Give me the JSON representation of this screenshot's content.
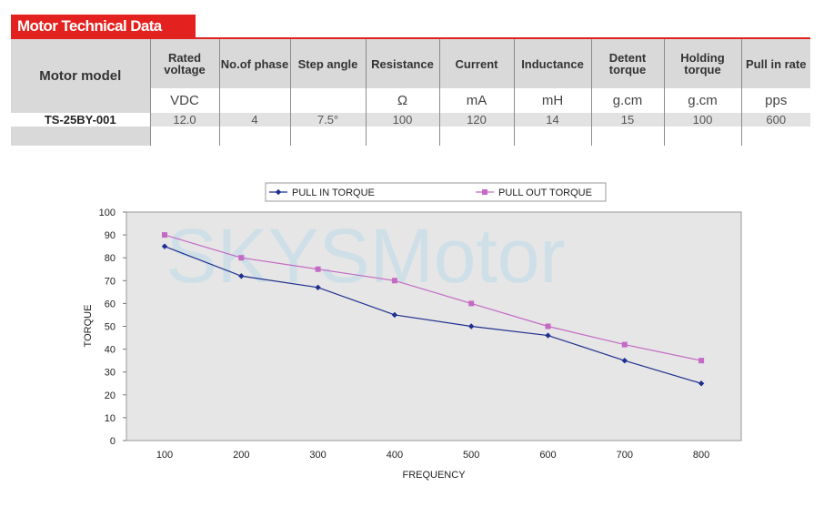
{
  "section_title": "Motor Technical Data",
  "table": {
    "model_header": "Motor model",
    "columns": [
      {
        "header": "Rated voltage",
        "unit": "VDC",
        "value": "12.0"
      },
      {
        "header": "No.of phase",
        "unit": "",
        "value": "4"
      },
      {
        "header": "Step angle",
        "unit": "",
        "value": "7.5°"
      },
      {
        "header": "Resistance",
        "unit": "Ω",
        "value": "100"
      },
      {
        "header": "Current",
        "unit": "mA",
        "value": "120"
      },
      {
        "header": "Inductance",
        "unit": "mH",
        "value": "14"
      },
      {
        "header": "Detent torque",
        "unit": "g.cm",
        "value": "15"
      },
      {
        "header": "Holding torque",
        "unit": "g.cm",
        "value": "100"
      },
      {
        "header": "Pull in rate",
        "unit": "pps",
        "value": "600"
      }
    ],
    "model_name": "TS-25BY-001"
  },
  "watermark": "SKYSMotor",
  "colors": {
    "accent": "#e3211f",
    "pull_in": "#1f2f8f",
    "pull_out": "#c46ac4",
    "plot_bg": "#e6e6e6"
  },
  "chart_data": {
    "type": "line",
    "x": [
      100,
      200,
      300,
      400,
      500,
      600,
      700,
      800
    ],
    "series": [
      {
        "name": "PULL IN TORQUE",
        "values": [
          85,
          72,
          67,
          55,
          50,
          46,
          35,
          25
        ],
        "color": "#1f2f8f",
        "marker": "diamond"
      },
      {
        "name": "PULL OUT TORQUE",
        "values": [
          90,
          80,
          75,
          70,
          60,
          50,
          42,
          35
        ],
        "color": "#c46ac4",
        "marker": "square"
      }
    ],
    "xlabel": "FREQUENCY",
    "ylabel": "TORQUE",
    "ylim": [
      0,
      100
    ],
    "yticks": [
      0,
      10,
      20,
      30,
      40,
      50,
      60,
      70,
      80,
      90,
      100
    ],
    "xticks": [
      100,
      200,
      300,
      400,
      500,
      600,
      700,
      800
    ],
    "grid": false,
    "legend": "top"
  }
}
